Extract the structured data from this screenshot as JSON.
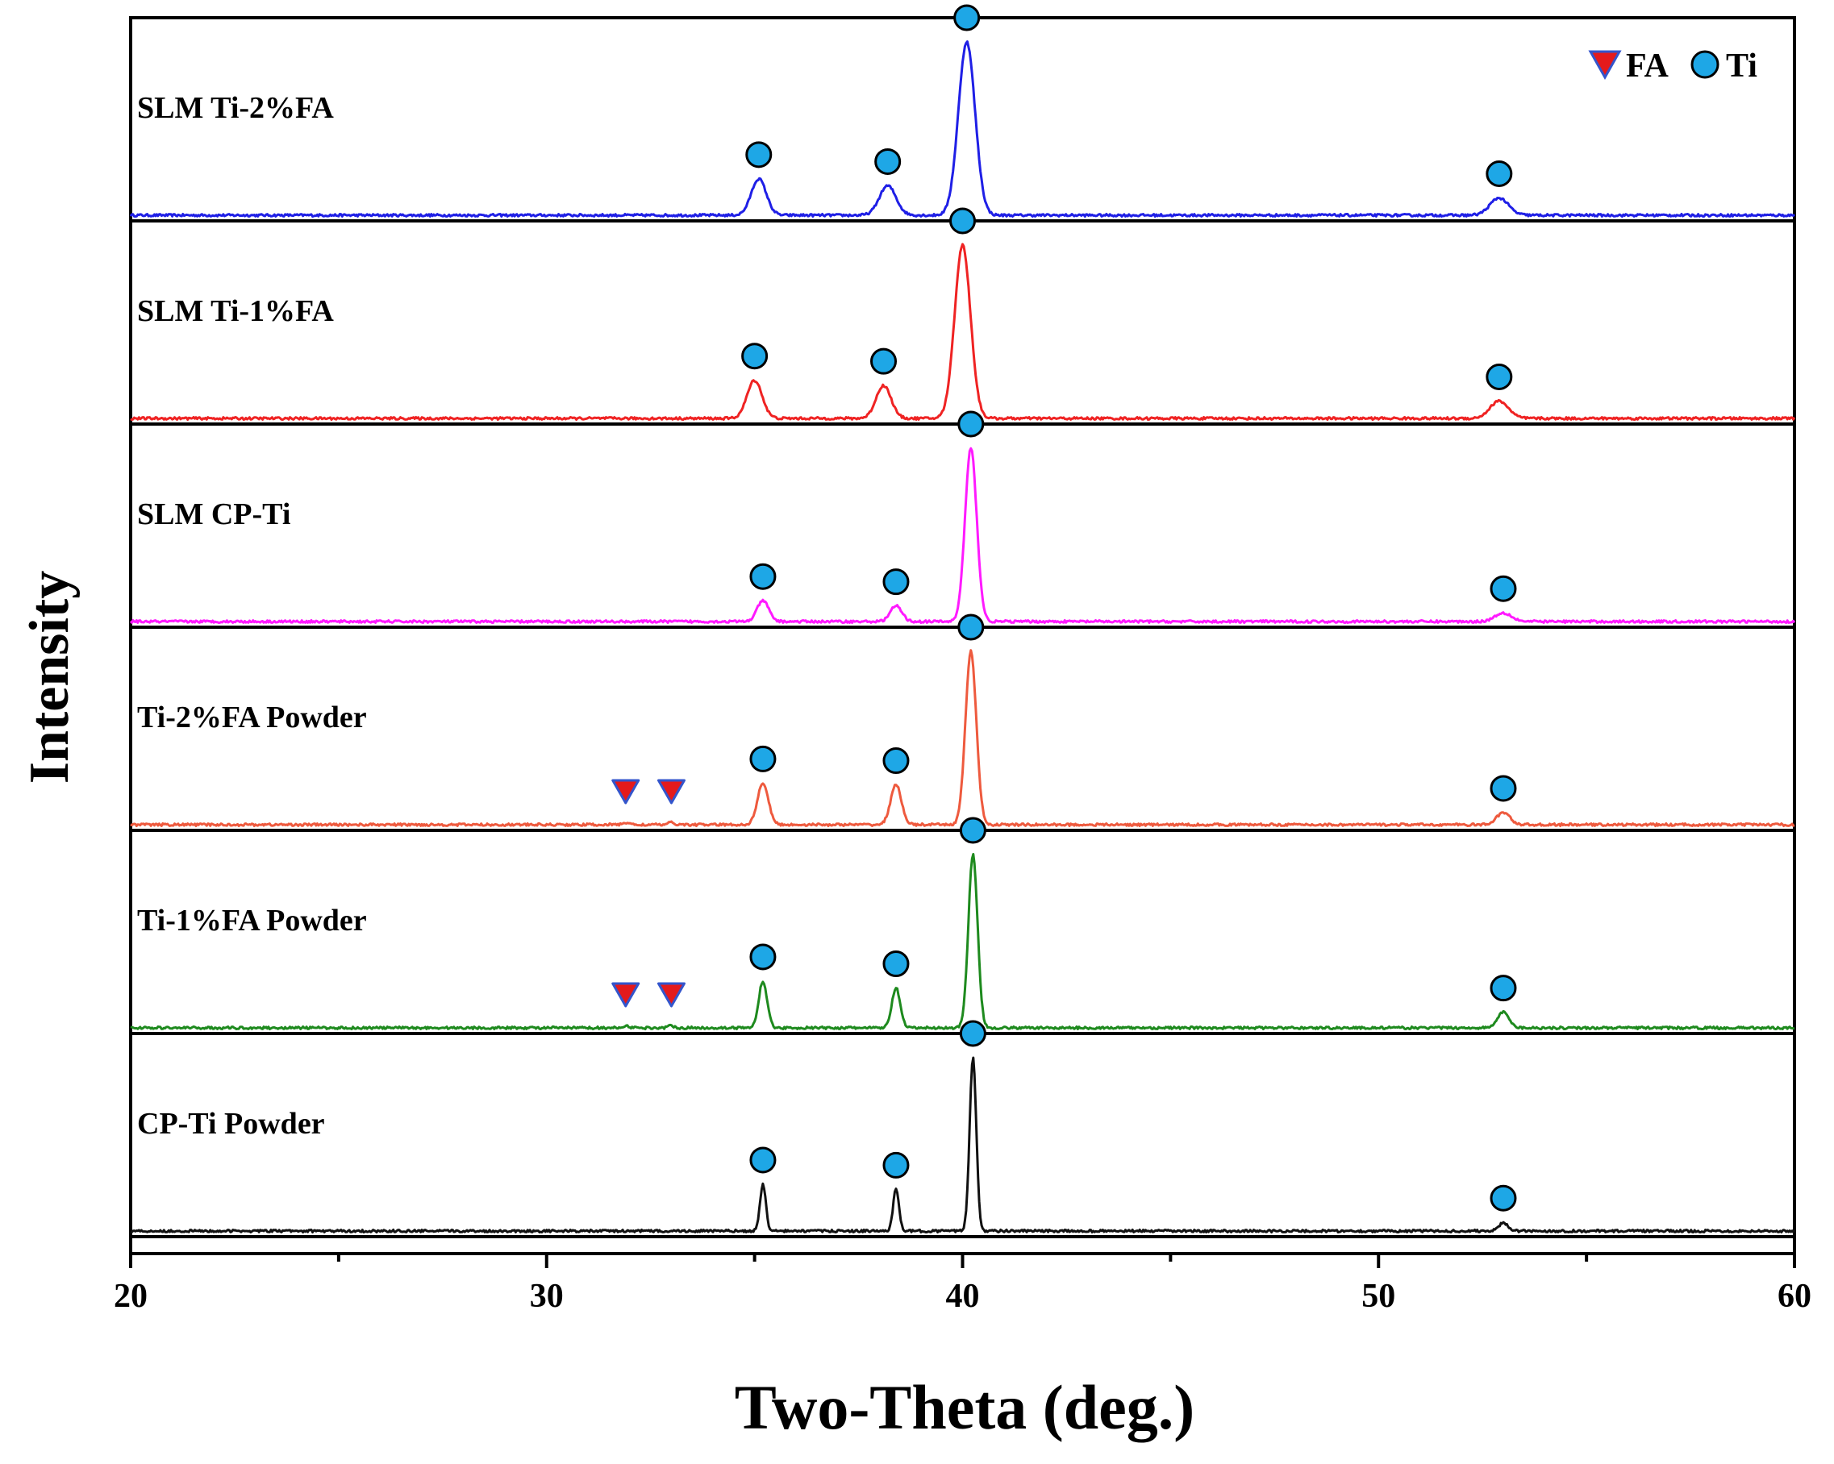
{
  "chart_data": {
    "type": "line",
    "title": "",
    "xlabel": "Two-Theta (deg.)",
    "ylabel": "Intensity",
    "xlim": [
      20,
      60
    ],
    "xticks": [
      20,
      30,
      40,
      50,
      60
    ],
    "grid": false,
    "stacked_panels": true,
    "legend": {
      "position": "top-right",
      "entries": [
        {
          "label": "FA",
          "marker": "triangle-down",
          "color": "#e41a1c"
        },
        {
          "label": "Ti",
          "marker": "circle",
          "color": "#1ea7e6"
        }
      ]
    },
    "ti_marker_color": "#1ea7e6",
    "fa_marker_color": "#e41a1c",
    "series": [
      {
        "name": "SLM Ti-2%FA",
        "color": "#1f1fe6",
        "peaks": [
          {
            "two_theta": 35.1,
            "rel_intensity": 0.21,
            "width": 0.18,
            "phase": "Ti"
          },
          {
            "two_theta": 38.2,
            "rel_intensity": 0.17,
            "width": 0.2,
            "phase": "Ti"
          },
          {
            "two_theta": 40.1,
            "rel_intensity": 1.0,
            "width": 0.2,
            "phase": "Ti"
          },
          {
            "two_theta": 52.9,
            "rel_intensity": 0.1,
            "width": 0.22,
            "phase": "Ti"
          }
        ],
        "fa_peaks": []
      },
      {
        "name": "SLM Ti-1%FA",
        "color": "#ef2323",
        "peaks": [
          {
            "two_theta": 35.0,
            "rel_intensity": 0.22,
            "width": 0.18,
            "phase": "Ti"
          },
          {
            "two_theta": 38.1,
            "rel_intensity": 0.19,
            "width": 0.18,
            "phase": "Ti"
          },
          {
            "two_theta": 40.0,
            "rel_intensity": 1.0,
            "width": 0.19,
            "phase": "Ti"
          },
          {
            "two_theta": 52.9,
            "rel_intensity": 0.1,
            "width": 0.22,
            "phase": "Ti"
          }
        ],
        "fa_peaks": []
      },
      {
        "name": "SLM CP-Ti",
        "color": "#ff1aff",
        "peaks": [
          {
            "two_theta": 35.2,
            "rel_intensity": 0.12,
            "width": 0.14,
            "phase": "Ti"
          },
          {
            "two_theta": 38.4,
            "rel_intensity": 0.09,
            "width": 0.14,
            "phase": "Ti"
          },
          {
            "two_theta": 40.2,
            "rel_intensity": 1.0,
            "width": 0.14,
            "phase": "Ti"
          },
          {
            "two_theta": 53.0,
            "rel_intensity": 0.05,
            "width": 0.2,
            "phase": "Ti"
          }
        ],
        "fa_peaks": []
      },
      {
        "name": "Ti-2%FA Powder",
        "color": "#ee5a3e",
        "peaks": [
          {
            "two_theta": 35.2,
            "rel_intensity": 0.24,
            "width": 0.13,
            "phase": "Ti"
          },
          {
            "two_theta": 38.4,
            "rel_intensity": 0.23,
            "width": 0.13,
            "phase": "Ti"
          },
          {
            "two_theta": 40.2,
            "rel_intensity": 1.0,
            "width": 0.13,
            "phase": "Ti"
          },
          {
            "two_theta": 53.0,
            "rel_intensity": 0.07,
            "width": 0.16,
            "phase": "Ti"
          }
        ],
        "fa_peaks": [
          31.9,
          33.0
        ]
      },
      {
        "name": "Ti-1%FA Powder",
        "color": "#1e8a1e",
        "peaks": [
          {
            "two_theta": 35.2,
            "rel_intensity": 0.27,
            "width": 0.1,
            "phase": "Ti"
          },
          {
            "two_theta": 38.4,
            "rel_intensity": 0.23,
            "width": 0.1,
            "phase": "Ti"
          },
          {
            "two_theta": 40.25,
            "rel_intensity": 1.0,
            "width": 0.11,
            "phase": "Ti"
          },
          {
            "two_theta": 53.0,
            "rel_intensity": 0.09,
            "width": 0.14,
            "phase": "Ti"
          }
        ],
        "fa_peaks": [
          31.9,
          33.0
        ]
      },
      {
        "name": "CP-Ti Powder",
        "color": "#111111",
        "peaks": [
          {
            "two_theta": 35.2,
            "rel_intensity": 0.27,
            "width": 0.07,
            "phase": "Ti"
          },
          {
            "two_theta": 38.4,
            "rel_intensity": 0.24,
            "width": 0.07,
            "phase": "Ti"
          },
          {
            "two_theta": 40.25,
            "rel_intensity": 1.0,
            "width": 0.08,
            "phase": "Ti"
          },
          {
            "two_theta": 53.0,
            "rel_intensity": 0.05,
            "width": 0.1,
            "phase": "Ti"
          }
        ],
        "fa_peaks": []
      }
    ]
  }
}
